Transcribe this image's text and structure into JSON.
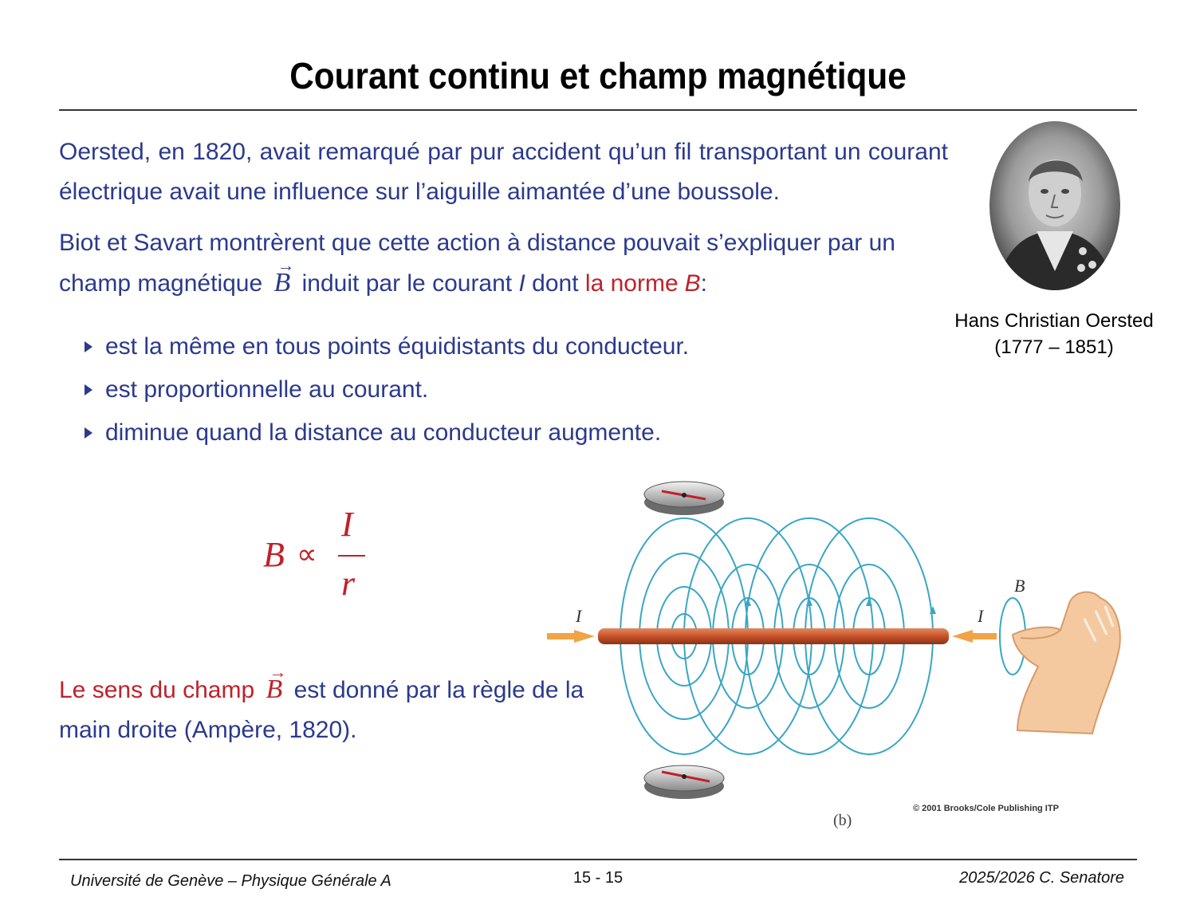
{
  "title": "Courant continu et champ magnétique",
  "paragraph1": "Oersted, en 1820, avait remarqué par pur accident qu’un fil transportant un courant électrique avait une influence sur l’aiguille aimantée d’une boussole.",
  "paragraph2": {
    "part1": "Biot et Savart montrèrent que cette action à distance pouvait s’expliquer par un champ magnétique",
    "vector": "B",
    "part2": "induit par le courant",
    "current": "I",
    "part3": "dont",
    "red_part": "la norme",
    "red_italic": "B",
    "colon": ":"
  },
  "bullets": [
    "est la même en tous points équidistants du conducteur.",
    "est proportionnelle au courant.",
    "diminue quand la distance au conducteur augmente."
  ],
  "portrait_caption": {
    "name": "Hans Christian Oersted",
    "dates": "(1777 – 1851)"
  },
  "formula": {
    "lhs": "B",
    "symbol": "∝",
    "numerator": "I",
    "denominator": "r"
  },
  "paragraph3": {
    "red_part": "Le sens du champ",
    "vector": "B",
    "rest": "est donné par la règle de la main droite (Ampère, 1820)."
  },
  "figure": {
    "current_label_left": "I",
    "current_label_right": "I",
    "field_label": "B",
    "copyright": "© 2001 Brooks/Cole Publishing ITP",
    "label": "(b)"
  },
  "footer": {
    "left": "Université de Genève – Physique Générale A",
    "center": "15 - 15",
    "right": "2025/2026  C. Senatore"
  },
  "colors": {
    "body_text": "#2b3a8c",
    "accent_red": "#c0212a",
    "field_lines": "#3aa6c4",
    "wire": "#c8522a",
    "arrow": "#f0a347"
  }
}
